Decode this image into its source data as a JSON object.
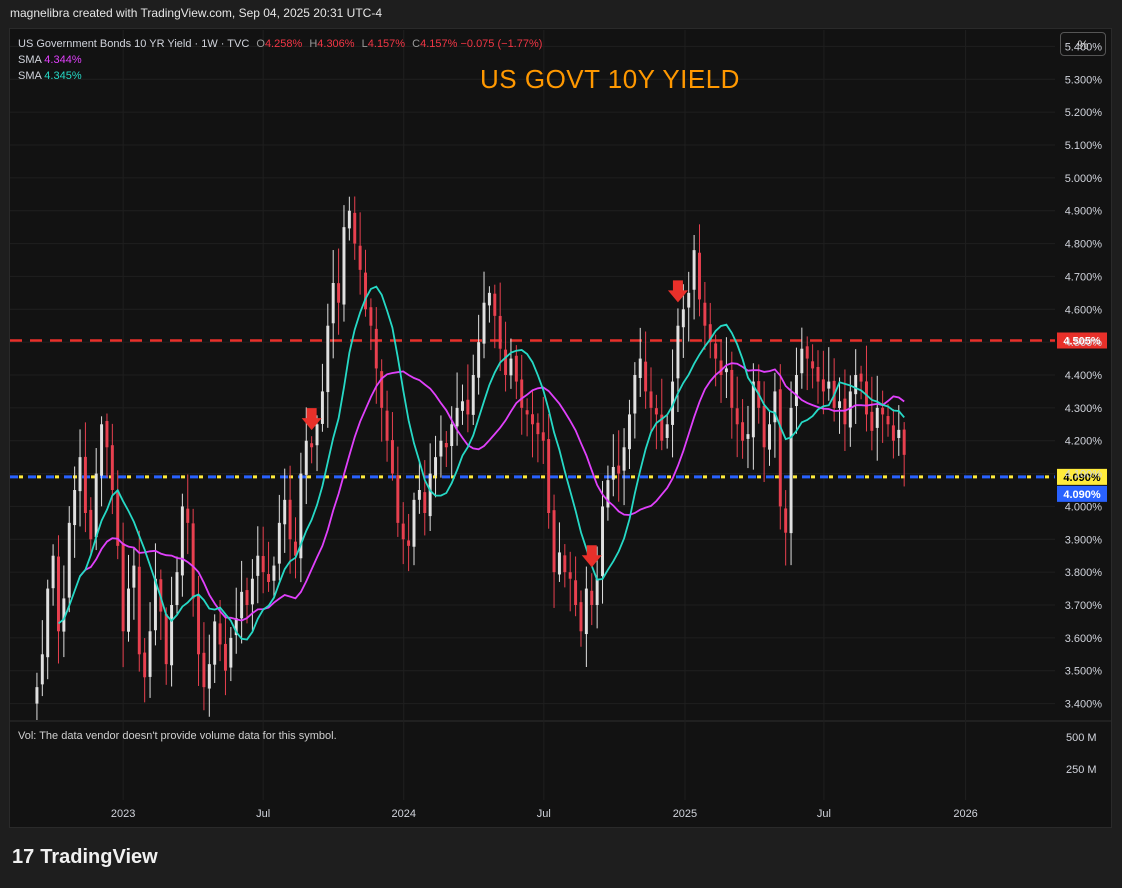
{
  "header": {
    "credit": "magnelibra created with TradingView.com, Sep 04, 2025 20:31 UTC-4"
  },
  "legend": {
    "symbol": "US Government Bonds 10 YR Yield · 1W · TVC",
    "o_label": "O",
    "o_val": "4.258%",
    "h_label": "H",
    "h_val": "4.306%",
    "l_label": "L",
    "l_val": "4.157%",
    "c_label": "C",
    "c_val": "4.157%",
    "change": "−0.075 (−1.77%)",
    "sma1_label": "SMA",
    "sma1_val": "4.344%",
    "sma2_label": "SMA",
    "sma2_val": "4.345%"
  },
  "annotation_title": "US GOVT 10Y YIELD",
  "scale_button": "%",
  "volume_note": "Vol: The data vendor doesn't provide volume data for this symbol.",
  "volume_scale": [
    "500 M",
    "250 M"
  ],
  "footer": {
    "logo_text": "TradingView"
  },
  "colors": {
    "up": "#e0e0e0",
    "down": "#e8404f",
    "sma_slow": "#e040fb",
    "sma_fast": "#26d9c6",
    "resistance": "#e8302a",
    "support_yellow": "#ffeb3b",
    "support_blue": "#2962ff",
    "arrow": "#e8302a",
    "title": "#ff9800"
  },
  "chart_data": {
    "type": "candlestick",
    "title": "US GOVT 10Y YIELD",
    "timeframe": "1W",
    "ylim": [
      3.35,
      5.45
    ],
    "y_ticks": [
      "5.400%",
      "5.300%",
      "5.200%",
      "5.100%",
      "5.000%",
      "4.900%",
      "4.800%",
      "4.700%",
      "4.600%",
      "4.500%",
      "4.400%",
      "4.300%",
      "4.200%",
      "4.100%",
      "4.000%",
      "3.900%",
      "3.800%",
      "3.700%",
      "3.600%",
      "3.500%",
      "3.400%"
    ],
    "x_labels": [
      {
        "label": "2023",
        "t": 0.0
      },
      {
        "label": "Jul",
        "t": 26.0
      },
      {
        "label": "2024",
        "t": 52.1
      },
      {
        "label": "Jul",
        "t": 78.1
      },
      {
        "label": "2025",
        "t": 104.3
      },
      {
        "label": "Jul",
        "t": 130.1
      },
      {
        "label": "2026",
        "t": 156.4
      }
    ],
    "x_range": [
      -21,
      173
    ],
    "start_week": -16,
    "closes": [
      3.45,
      3.55,
      3.75,
      3.85,
      3.62,
      3.72,
      3.95,
      4.05,
      4.15,
      3.98,
      3.9,
      4.1,
      4.25,
      4.18,
      4.05,
      3.88,
      3.62,
      3.75,
      3.82,
      3.55,
      3.48,
      3.62,
      3.78,
      3.68,
      3.52,
      3.7,
      3.8,
      4.0,
      3.95,
      3.72,
      3.55,
      3.45,
      3.52,
      3.65,
      3.58,
      3.5,
      3.6,
      3.66,
      3.74,
      3.7,
      3.78,
      3.85,
      3.8,
      3.77,
      3.82,
      3.95,
      4.02,
      3.9,
      3.85,
      4.1,
      4.2,
      4.18,
      4.25,
      4.35,
      4.55,
      4.68,
      4.62,
      4.85,
      4.9,
      4.8,
      4.72,
      4.6,
      4.55,
      4.42,
      4.3,
      4.2,
      4.1,
      3.95,
      3.9,
      3.88,
      4.02,
      4.05,
      3.98,
      4.1,
      4.15,
      4.2,
      4.18,
      4.25,
      4.3,
      4.32,
      4.28,
      4.4,
      4.5,
      4.62,
      4.65,
      4.58,
      4.48,
      4.4,
      4.45,
      4.38,
      4.3,
      4.28,
      4.25,
      4.22,
      4.2,
      3.98,
      3.8,
      3.86,
      3.8,
      3.78,
      3.7,
      3.62,
      3.75,
      3.7,
      3.78,
      4.0,
      4.08,
      4.12,
      4.1,
      4.18,
      4.28,
      4.4,
      4.45,
      4.35,
      4.3,
      4.28,
      4.2,
      4.25,
      4.38,
      4.55,
      4.6,
      4.65,
      4.78,
      4.63,
      4.55,
      4.5,
      4.45,
      4.4,
      4.42,
      4.3,
      4.25,
      4.2,
      4.22,
      4.38,
      4.3,
      4.18,
      4.25,
      4.35,
      4.0,
      3.92,
      4.3,
      4.4,
      4.48,
      4.45,
      4.42,
      4.38,
      4.35,
      4.38,
      4.3,
      4.32,
      4.25,
      4.35,
      4.4,
      4.38,
      4.28,
      4.23,
      4.3,
      4.28,
      4.25,
      4.2,
      4.233,
      4.157
    ],
    "series": [
      {
        "name": "SMA",
        "last": "4.344%",
        "type": "sma_slow"
      },
      {
        "name": "SMA",
        "last": "4.345%",
        "type": "sma_fast"
      }
    ],
    "levels": [
      {
        "name": "resistance",
        "value": 4.505,
        "label": "4.505%",
        "style": "dashed-red"
      },
      {
        "name": "support",
        "value": 4.09,
        "label": "4.090%",
        "style": "dotted-yellow-blue"
      }
    ],
    "markers": [
      {
        "type": "down-arrow",
        "week": 51
      },
      {
        "type": "down-arrow",
        "week": 103
      },
      {
        "type": "down-arrow",
        "week": 119
      }
    ]
  }
}
